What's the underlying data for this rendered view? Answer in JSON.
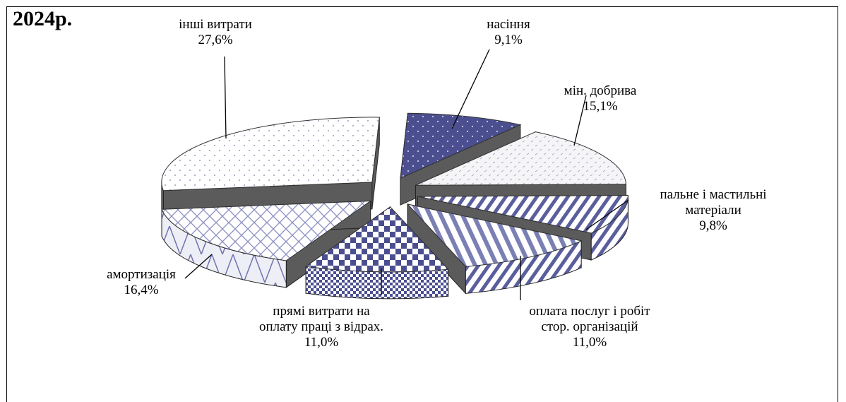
{
  "chart_data": {
    "type": "pie",
    "title": "2024р.",
    "unit": "%",
    "slices": [
      {
        "label_lines": [
          "насіння"
        ],
        "value": 9.1,
        "value_text": "9,1%"
      },
      {
        "label_lines": [
          "мін. добрива"
        ],
        "value": 15.1,
        "value_text": "15,1%"
      },
      {
        "label_lines": [
          "пальне і мастильні",
          "матеріали"
        ],
        "value": 9.8,
        "value_text": "9,8%"
      },
      {
        "label_lines": [
          "оплата послуг і робіт",
          "стор. організацій"
        ],
        "value": 11.0,
        "value_text": "11,0%"
      },
      {
        "label_lines": [
          "прямі витрати на",
          "оплату праці з відрах."
        ],
        "value": 11.0,
        "value_text": "11,0%"
      },
      {
        "label_lines": [
          "амортизація"
        ],
        "value": 16.4,
        "value_text": "16,4%"
      },
      {
        "label_lines": [
          "інші витрати"
        ],
        "value": 27.6,
        "value_text": "27,6%"
      }
    ],
    "colors": {
      "dark_blue": "#4b4f8f",
      "light_pattern": "#ffffff",
      "side_gray": "#6d6d6d"
    }
  }
}
